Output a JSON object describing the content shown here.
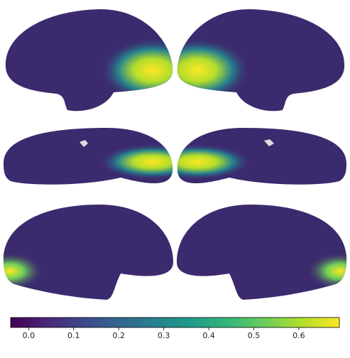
{
  "chart_data": {
    "type": "colorbar",
    "colormap": "viridis",
    "clim": [
      -0.04,
      0.69
    ],
    "ticks": [
      {
        "value": 0,
        "label": "0.0"
      },
      0.1,
      0.2,
      0.3,
      0.4,
      0.5,
      0.6
    ]
  }
}
